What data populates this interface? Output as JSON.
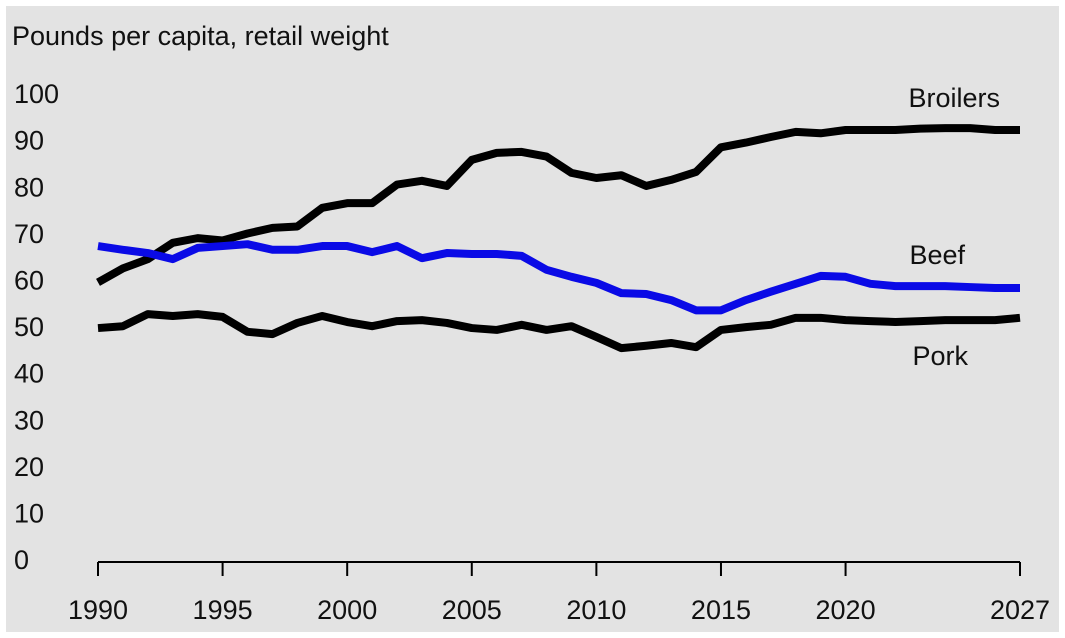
{
  "chart_data": {
    "type": "line",
    "y_axis_label": "Pounds per capita, retail weight",
    "x": [
      1990,
      1991,
      1992,
      1993,
      1994,
      1995,
      1996,
      1997,
      1998,
      1999,
      2000,
      2001,
      2002,
      2003,
      2004,
      2005,
      2006,
      2007,
      2008,
      2009,
      2010,
      2011,
      2012,
      2013,
      2014,
      2015,
      2016,
      2017,
      2018,
      2019,
      2020,
      2021,
      2022,
      2023,
      2024,
      2025,
      2026,
      2027
    ],
    "series": [
      {
        "name": "Broilers",
        "color": "#000000",
        "values": [
          60,
          63,
          65,
          68.5,
          69.5,
          69,
          70.5,
          71.7,
          72,
          76,
          77,
          77,
          81,
          81.8,
          80.7,
          86.3,
          87.8,
          88,
          87,
          83.5,
          82.4,
          83,
          80.7,
          82,
          83.7,
          89,
          90,
          91.2,
          92.3,
          92,
          92.7,
          92.7,
          92.7,
          93,
          93.1,
          93.1,
          92.7,
          92.7
        ]
      },
      {
        "name": "Beef",
        "color": "#0a0ae6",
        "values": [
          67.8,
          67,
          66.3,
          65,
          67.4,
          67.8,
          68.2,
          67,
          67,
          67.8,
          67.8,
          66.5,
          67.8,
          65.2,
          66.3,
          66.1,
          66.1,
          65.7,
          62.7,
          61.2,
          59.9,
          57.7,
          57.5,
          56.2,
          54,
          54,
          56.2,
          58,
          59.7,
          61.4,
          61.2,
          59.7,
          59.2,
          59.2,
          59.2,
          59,
          58.8,
          58.8
        ]
      },
      {
        "name": "Pork",
        "color": "#000000",
        "values": [
          50.2,
          50.6,
          53.2,
          52.8,
          53.2,
          52.6,
          49.4,
          48.9,
          51.3,
          52.8,
          51.5,
          50.6,
          51.7,
          51.9,
          51.3,
          50.2,
          49.8,
          50.9,
          49.8,
          50.6,
          48.3,
          45.9,
          46.4,
          47,
          46.1,
          49.8,
          50.4,
          50.9,
          52.4,
          52.4,
          51.9,
          51.7,
          51.5,
          51.7,
          51.9,
          51.9,
          51.9,
          52.4
        ]
      }
    ],
    "xlim": [
      1990,
      2027
    ],
    "xticks": [
      1990,
      1995,
      2000,
      2005,
      2010,
      2015,
      2020,
      2027
    ],
    "ylim": [
      0,
      100
    ],
    "yticks": [
      0,
      10,
      20,
      30,
      40,
      50,
      60,
      70,
      80,
      90,
      100
    ],
    "grid": false
  }
}
